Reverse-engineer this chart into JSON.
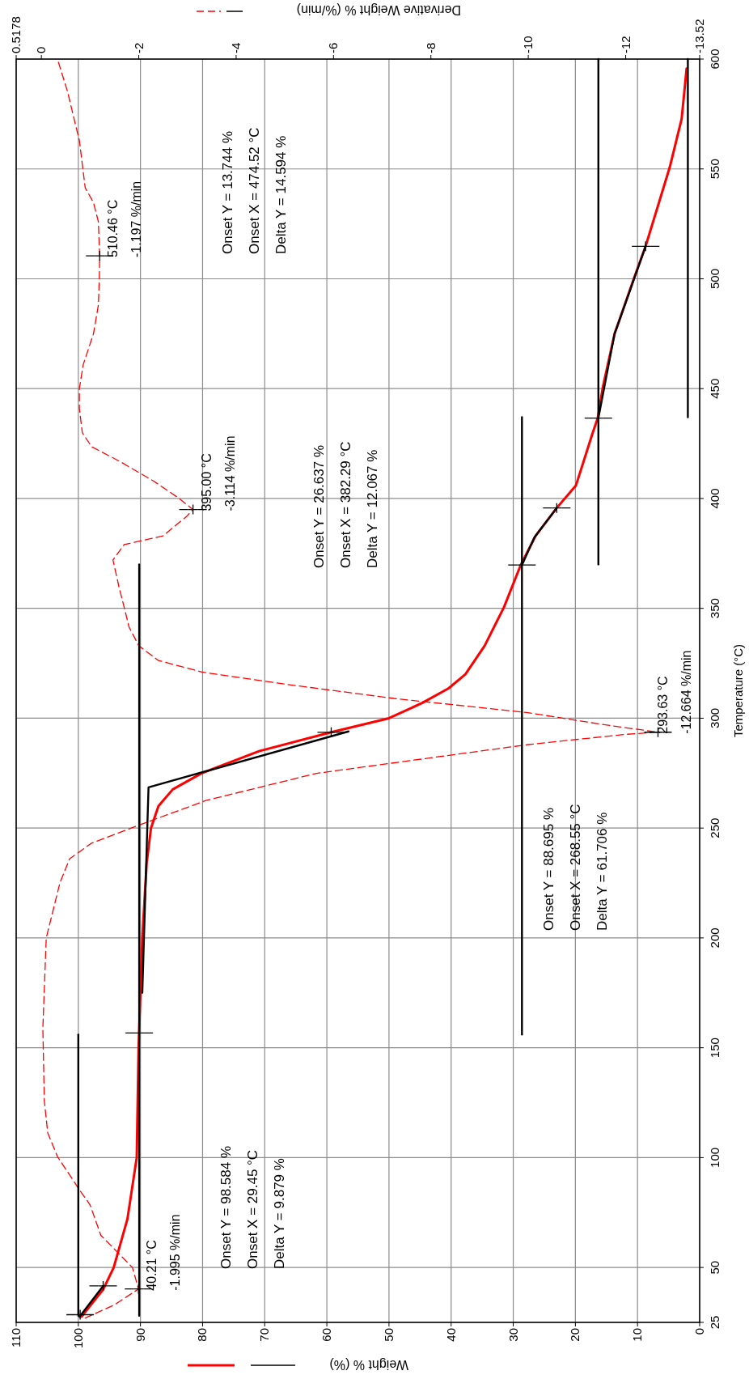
{
  "chart_data": {
    "type": "line",
    "xlabel": "Weight % (%)",
    "ylabel": "Temperature (°C)",
    "x2label": "Derivative Weight % (%/min)",
    "xlim": [
      110,
      0
    ],
    "xticks": [
      110,
      100,
      90,
      80,
      70,
      60,
      50,
      40,
      30,
      20,
      10,
      0
    ],
    "ylim": [
      25,
      600
    ],
    "yticks": [
      25,
      50,
      100,
      150,
      200,
      250,
      300,
      350,
      400,
      450,
      500,
      550,
      600
    ],
    "x2lim": [
      0.5178,
      -13.52
    ],
    "x2ticks": [
      0.5178,
      0,
      -2,
      -4,
      -6,
      -8,
      -10,
      -12,
      -13.52
    ],
    "grid": true,
    "marker": "none",
    "series": [
      {
        "color": "#ff0000",
        "line_style": "solid",
        "x": [
          99.5,
          96,
          94.3,
          92.1,
          90.6,
          90.3,
          89.7,
          89,
          88.3,
          87.1,
          84.8,
          80.2,
          70.9,
          59.3,
          50,
          44.6,
          40.4,
          37.7,
          34.6,
          31.5,
          28.8,
          26.4,
          23,
          19.9,
          17.2,
          16.4,
          15.6,
          13.7,
          10.6,
          8.7,
          4.8,
          2.9,
          2.1
        ],
        "values": [
          27.6,
          40,
          50,
          72,
          100,
          150,
          200,
          234,
          250,
          260,
          267.6,
          274.9,
          285,
          293.6,
          300,
          307,
          313.6,
          320,
          333,
          350.5,
          369.7,
          383,
          395.7,
          406,
          430,
          436.6,
          450.4,
          474.9,
          500,
          514.8,
          550.9,
          572.8,
          595.7
        ]
      },
      {
        "color": "#ff0000",
        "line_style": "dashed",
        "axis": "x2",
        "x": [
          -0.9,
          -1.5,
          -1.995,
          -1.87,
          -1.22,
          -1,
          -0.78,
          -0.33,
          -0.13,
          -0.06,
          -0.03,
          -0.1,
          -0.38,
          -0.58,
          -1.02,
          -2,
          -3.39,
          -5.65,
          -10,
          -11.97,
          -12.664,
          -11.48,
          -10,
          -7.24,
          -5,
          -3.3,
          -2.4,
          -2,
          -1.8,
          -1.7,
          -1.6,
          -1.47,
          -1.7,
          -2.5,
          -2.99,
          -3.114,
          -2.8,
          -2.3,
          -1.6,
          -1.03,
          -0.84,
          -0.78,
          -0.78,
          -0.86,
          -1.07,
          -1.17,
          -1.19,
          -1.197,
          -1.17,
          -1.07,
          -0.9,
          -0.78,
          -0.68,
          -0.54,
          -0.33
        ],
        "values": [
          27,
          33,
          40.21,
          50,
          64.7,
          78.5,
          85.4,
          100.5,
          111.3,
          126,
          159,
          200,
          225,
          236,
          243,
          251.3,
          262.6,
          274.9,
          288,
          292.6,
          293.63,
          297.3,
          302.5,
          309,
          315.5,
          321,
          326.3,
          333,
          341.5,
          350.5,
          359.2,
          372,
          379,
          383,
          392,
          395,
          400.5,
          408,
          417,
          423.6,
          430,
          441,
          450,
          461,
          475,
          488,
          500,
          510.46,
          526,
          534.7,
          541.4,
          563,
          572,
          585,
          600
        ]
      },
      {
        "color": "#000000",
        "x": [
          100,
          100,
          100,
          100
        ],
        "values": [
          28,
          70,
          110,
          156
        ]
      },
      {
        "color": "#000000",
        "x": [
          90.2,
          90.2,
          90.2,
          90.2,
          90.2,
          90.2,
          90.2,
          90.2
        ],
        "values": [
          28,
          75,
          125,
          175,
          225,
          275,
          325,
          370
        ]
      },
      {
        "color": "#000000",
        "x": [
          99.8,
          96
        ],
        "values": [
          27.6,
          41.6
        ]
      },
      {
        "color": "#000000",
        "x": [
          89.7,
          88.7,
          56.5
        ],
        "values": [
          175,
          268.55,
          294
        ]
      },
      {
        "color": "#000000",
        "x": [
          28.6,
          28.6,
          28.6,
          28.6,
          28.6,
          28.6,
          28.6
        ],
        "values": [
          156,
          200,
          250,
          300,
          350,
          400,
          437
        ]
      },
      {
        "color": "#000000",
        "x": [
          28.6,
          26.6,
          23
        ],
        "values": [
          369.7,
          382.3,
          395.7
        ]
      },
      {
        "color": "#000000",
        "x": [
          16.3,
          16.3,
          16.3,
          16.3,
          16.3,
          16.3
        ],
        "values": [
          370,
          420,
          470,
          520,
          560,
          600
        ]
      },
      {
        "color": "#000000",
        "x": [
          1.9,
          1.9,
          1.9,
          1.9,
          1.9
        ],
        "values": [
          437,
          480,
          520,
          560,
          600
        ]
      },
      {
        "color": "#000000",
        "x": [
          16.3,
          13.7,
          8.7
        ],
        "values": [
          436.6,
          474.9,
          514.8
        ]
      },
      {
        "type": "scatter",
        "color": "#000000",
        "marker": "cross",
        "x": [
          99.7,
          96,
          90.2,
          59.3,
          28.6,
          23,
          16.3,
          8.7
        ],
        "values": [
          28.5,
          41.6,
          156.7,
          293.6,
          369.7,
          395.7,
          436.6,
          514.8
        ]
      },
      {
        "type": "scatter",
        "color": "#000000",
        "marker": "cross",
        "axis": "x2",
        "x": [
          -1.995,
          -12.664,
          -3.114,
          -1.197
        ],
        "values": [
          40.21,
          293.63,
          395,
          510.46
        ],
        "value_labels": [
          "40.21 °C\n-1.995 %/min",
          "293.63 °C\n-12.664 %/min",
          "395.00 °C\n-3.114 %/min",
          "510.46 °C\n-1.197 %/min"
        ]
      }
    ],
    "annotations": [
      "Onset Y = 98.584 %\nOnset X = 29.45 °C\nDelta Y = 9.879 %",
      "Onset Y = 88.695 %\nOnset X = 268.55 °C\nDelta Y = 61.706 %",
      "Onset Y = 26.637 %\nOnset X = 382.29 °C\nDelta Y = 12.067 %",
      "Onset Y = 13.744 %\nOnset X = 474.52 °C\nDelta Y = 14.594 %"
    ]
  }
}
